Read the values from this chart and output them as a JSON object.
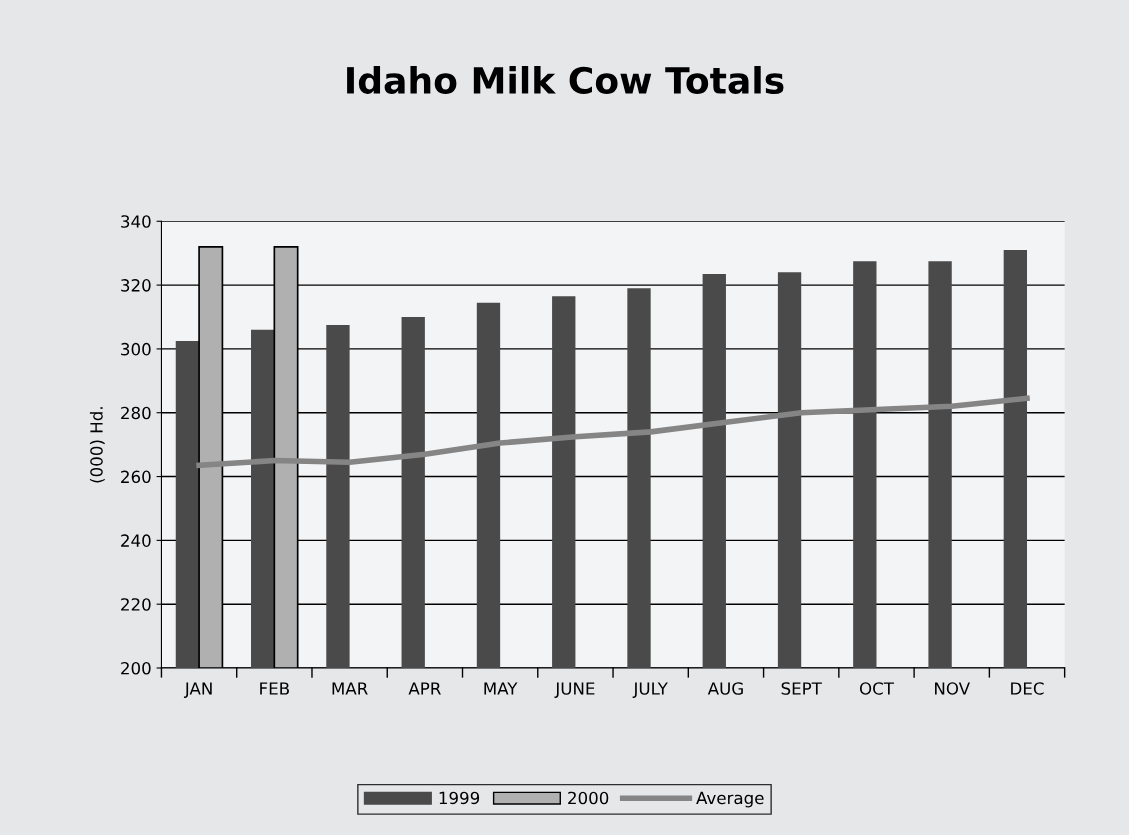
{
  "chart_data": {
    "type": "bar",
    "title": "Idaho Milk Cow Totals",
    "ylabel": "(000) Hd.",
    "categories": [
      "JAN",
      "FEB",
      "MAR",
      "APR",
      "MAY",
      "JUNE",
      "JULY",
      "AUG",
      "SEPT",
      "OCT",
      "NOV",
      "DEC"
    ],
    "series": [
      {
        "name": "1999",
        "color": "#4a4a4a",
        "values": [
          302.5,
          306,
          307.5,
          310,
          314.5,
          316.5,
          319,
          323.5,
          324,
          327.5,
          327.5,
          331
        ]
      },
      {
        "name": "2000",
        "color": "#b0b0b0",
        "values": [
          332,
          332,
          null,
          null,
          null,
          null,
          null,
          null,
          null,
          null,
          null,
          null
        ]
      },
      {
        "name": "Average",
        "type": "line",
        "color": "#858585",
        "values": [
          263.5,
          265,
          264.5,
          267,
          270.5,
          272.5,
          274,
          277,
          280,
          281,
          282,
          284.5
        ]
      }
    ],
    "ylim": [
      200,
      340
    ],
    "yticks": [
      200,
      220,
      240,
      260,
      280,
      300,
      320,
      340
    ],
    "grid": "y",
    "legend": "bottom",
    "marker": "none",
    "line_style": "solid"
  }
}
